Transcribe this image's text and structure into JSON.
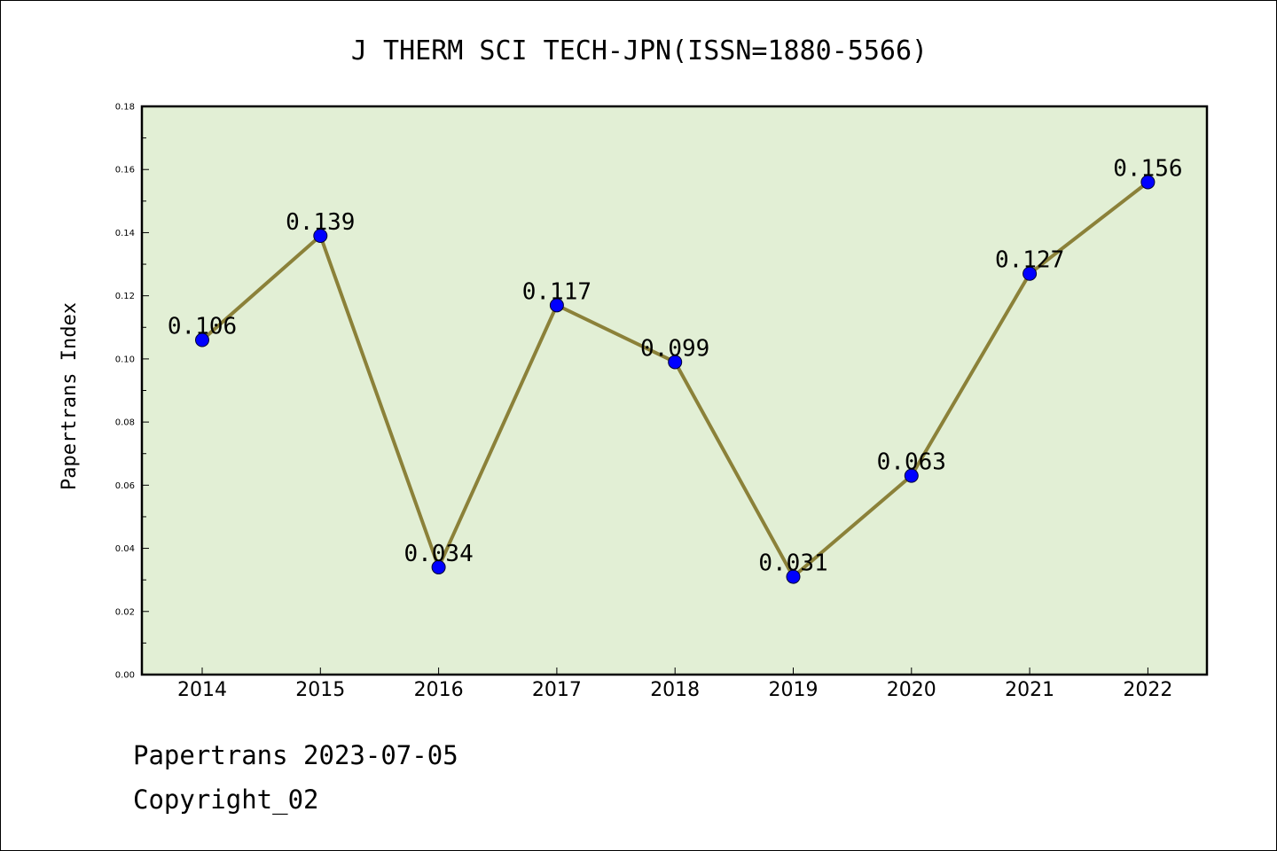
{
  "chart_data": {
    "type": "line",
    "title": "J THERM SCI TECH-JPN(ISSN=1880-5566)",
    "xlabel": "",
    "ylabel": "Papertrans Index",
    "categories": [
      "2014",
      "2015",
      "2016",
      "2017",
      "2018",
      "2019",
      "2020",
      "2021",
      "2022"
    ],
    "values": [
      0.106,
      0.139,
      0.034,
      0.117,
      0.099,
      0.031,
      0.063,
      0.127,
      0.156
    ],
    "data_labels": [
      "0.106",
      "0.139",
      "0.034",
      "0.117",
      "0.099",
      "0.031",
      "0.063",
      "0.127",
      "0.156"
    ],
    "ylim": [
      0,
      0.18
    ],
    "yticks": [
      "0.00",
      "0.02",
      "0.04",
      "0.06",
      "0.08",
      "0.10",
      "0.12",
      "0.14",
      "0.16",
      "0.18"
    ],
    "grid": false,
    "legend": "none",
    "colors": {
      "plot_background": "#e2efd5",
      "line": "#8b8139",
      "marker": "#0000ff"
    }
  },
  "footer": {
    "line1": "Papertrans 2023-07-05",
    "line2": "Copyright_02"
  }
}
